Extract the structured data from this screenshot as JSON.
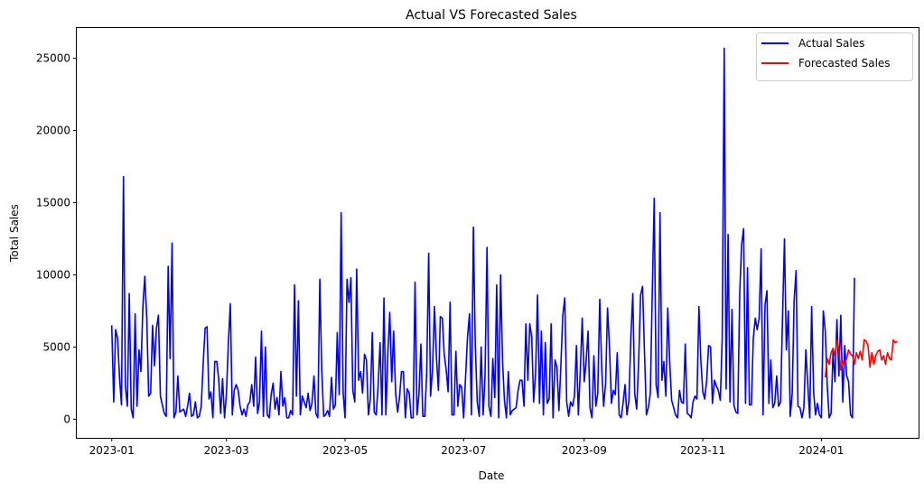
{
  "chart_data": {
    "type": "line",
    "title": "Actual VS Forecasted Sales",
    "xlabel": "Date",
    "ylabel": "Total Sales",
    "x_start": "2023-01-01",
    "x_range": [
      "2022-12-14",
      "2024-02-20"
    ],
    "ylim": [
      -1290,
      27100
    ],
    "x_ticks": [
      {
        "date": "2023-01-01",
        "label": "2023-01"
      },
      {
        "date": "2023-03-01",
        "label": "2023-03"
      },
      {
        "date": "2023-05-01",
        "label": "2023-05"
      },
      {
        "date": "2023-07-01",
        "label": "2023-07"
      },
      {
        "date": "2023-09-01",
        "label": "2023-09"
      },
      {
        "date": "2023-11-01",
        "label": "2023-11"
      },
      {
        "date": "2024-01-01",
        "label": "2024-01"
      }
    ],
    "y_ticks": [
      {
        "value": 0,
        "label": "0"
      },
      {
        "value": 5000,
        "label": "5000"
      },
      {
        "value": 10000,
        "label": "10000"
      },
      {
        "value": 15000,
        "label": "15000"
      },
      {
        "value": 20000,
        "label": "20000"
      },
      {
        "value": 25000,
        "label": "25000"
      }
    ],
    "grid": false,
    "legend_position": "top-right",
    "series": [
      {
        "name": "Actual Sales",
        "color": "#0000ff",
        "x_unit": "daily from 2023-01-01",
        "values": [
          6500,
          1200,
          6200,
          5600,
          2800,
          1000,
          16800,
          2300,
          900,
          8700,
          700,
          100,
          7300,
          900,
          4800,
          3300,
          7800,
          9900,
          7000,
          1600,
          1800,
          6500,
          3700,
          6300,
          7200,
          1600,
          1000,
          400,
          200,
          10600,
          4200,
          12200,
          100,
          500,
          3000,
          500,
          600,
          700,
          200,
          900,
          1800,
          200,
          300,
          1200,
          100,
          200,
          900,
          3800,
          6300,
          6400,
          1400,
          1900,
          100,
          4000,
          4000,
          2800,
          400,
          2800,
          100,
          1800,
          5400,
          8000,
          300,
          2000,
          2400,
          2000,
          900,
          300,
          700,
          200,
          1000,
          1200,
          2400,
          900,
          4300,
          400,
          1200,
          6100,
          200,
          5000,
          300,
          100,
          1700,
          2500,
          700,
          1500,
          300,
          3300,
          900,
          1500,
          100,
          100,
          600,
          300,
          9300,
          1600,
          8200,
          300,
          1600,
          1200,
          800,
          1800,
          600,
          1100,
          3000,
          400,
          100,
          9700,
          3400,
          200,
          300,
          600,
          200,
          2900,
          700,
          1000,
          6000,
          1700,
          14300,
          1800,
          100,
          9700,
          8100,
          9800,
          2000,
          1200,
          10400,
          2700,
          3300,
          1800,
          4500,
          4100,
          300,
          1400,
          6000,
          500,
          300,
          2300,
          5300,
          300,
          8400,
          300,
          4500,
          7400,
          2600,
          6100,
          1800,
          500,
          1500,
          3300,
          3300,
          100,
          2100,
          1800,
          100,
          100,
          9500,
          300,
          1700,
          5200,
          200,
          200,
          3200,
          11500,
          1600,
          3500,
          7800,
          4300,
          2000,
          7100,
          7000,
          4500,
          3400,
          1900,
          8100,
          300,
          300,
          4700,
          900,
          2400,
          2200,
          100,
          3000,
          5700,
          7300,
          300,
          13300,
          5100,
          1200,
          200,
          5000,
          300,
          3000,
          11900,
          900,
          200,
          4200,
          1500,
          9300,
          100,
          10000,
          4000,
          1300,
          100,
          3300,
          300,
          600,
          700,
          800,
          2000,
          2700,
          2700,
          900,
          6600,
          2700,
          6600,
          5700,
          1200,
          3200,
          8600,
          1100,
          6100,
          300,
          5300,
          1100,
          1400,
          6600,
          100,
          4100,
          3600,
          600,
          3800,
          7200,
          8400,
          1200,
          200,
          1200,
          900,
          1600,
          5100,
          300,
          3400,
          7000,
          2600,
          4000,
          6100,
          800,
          100,
          4400,
          900,
          1800,
          8300,
          3500,
          900,
          2500,
          7700,
          5000,
          1100,
          2000,
          1700,
          4600,
          300,
          100,
          1100,
          2400,
          300,
          1300,
          5600,
          8700,
          1800,
          700,
          4000,
          8600,
          9200,
          4700,
          300,
          800,
          1800,
          8600,
          15300,
          2400,
          1500,
          14300,
          2700,
          4000,
          1600,
          7700,
          3900,
          1300,
          800,
          300,
          100,
          2000,
          1200,
          1100,
          5200,
          400,
          300,
          100,
          1200,
          1600,
          1400,
          7800,
          4100,
          1900,
          1400,
          2700,
          5100,
          5000,
          1100,
          2700,
          2300,
          2000,
          1300,
          5600,
          25700,
          2100,
          12800,
          1200,
          7600,
          1000,
          500,
          400,
          8800,
          12100,
          13200,
          1100,
          10500,
          1000,
          1000,
          5600,
          7000,
          6200,
          7000,
          11800,
          300,
          7900,
          8900,
          1100,
          4100,
          800,
          1100,
          3000,
          900,
          1200,
          6900,
          12500,
          4800,
          7500,
          200,
          1800,
          8200,
          10300,
          900,
          800,
          100,
          800,
          4800,
          2400,
          100,
          7800,
          1900,
          300,
          1100,
          300,
          100,
          7500,
          6100,
          2400,
          100,
          400,
          4700,
          2600,
          6900,
          3000,
          7200,
          1200,
          5100,
          3000,
          2600,
          300,
          100,
          9800
        ]
      },
      {
        "name": "Forecasted Sales",
        "color": "#ff0000",
        "x_start": "2024-01-03",
        "x_unit": "daily from 2024-01-03",
        "values": [
          2900,
          4200,
          3800,
          4600,
          4900,
          4400,
          5500,
          4800,
          3400,
          4000,
          3900,
          4200,
          4800,
          4500,
          4400,
          3800,
          4600,
          4200,
          4700,
          4100,
          5500,
          5400,
          5100,
          3600,
          4600,
          3800,
          4400,
          4700,
          4800,
          4100,
          4400,
          3800,
          4600,
          4200,
          4100,
          5500,
          5300,
          5400
        ]
      }
    ]
  }
}
